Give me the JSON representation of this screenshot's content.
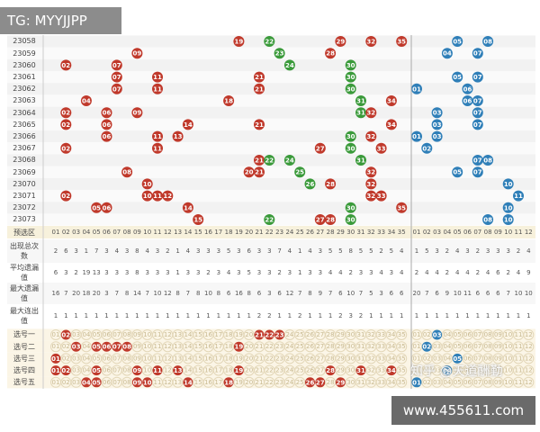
{
  "watermark_top": "TG: MYYJJPP",
  "watermark_bottom": "www.455611.com",
  "credit": "知乎 @天道酬勤",
  "trend": {
    "header_label": "预选区",
    "front_numbers": [
      "01",
      "02",
      "03",
      "04",
      "05",
      "06",
      "07",
      "08",
      "09",
      "10",
      "11",
      "12",
      "13",
      "14",
      "15",
      "16",
      "17",
      "18",
      "19",
      "20",
      "21",
      "22",
      "23",
      "24",
      "25",
      "26",
      "27",
      "28",
      "29",
      "30",
      "31",
      "32",
      "33",
      "34",
      "35"
    ],
    "back_numbers": [
      "01",
      "02",
      "03",
      "04",
      "05",
      "06",
      "07",
      "08",
      "09",
      "10",
      "11",
      "12"
    ],
    "front_green": [
      "22",
      "23",
      "24",
      "25",
      "26",
      "30",
      "31"
    ],
    "rows": [
      {
        "issue": "23058",
        "front": [
          "19",
          "22",
          "29",
          "32",
          "35"
        ],
        "back": [
          "05",
          "08"
        ]
      },
      {
        "issue": "23059",
        "front": [
          "09",
          "23",
          "28"
        ],
        "back": [
          "04",
          "07"
        ]
      },
      {
        "issue": "23060",
        "front": [
          "02",
          "07",
          "24",
          "30"
        ],
        "back": []
      },
      {
        "issue": "23061",
        "front": [
          "07",
          "11",
          "21",
          "30"
        ],
        "back": [
          "05",
          "07"
        ]
      },
      {
        "issue": "23062",
        "front": [
          "07",
          "11",
          "21",
          "30"
        ],
        "back": [
          "01",
          "06"
        ]
      },
      {
        "issue": "23063",
        "front": [
          "04",
          "18",
          "31",
          "34"
        ],
        "back": [
          "06",
          "07"
        ]
      },
      {
        "issue": "23064",
        "front": [
          "02",
          "06",
          "09",
          "31",
          "32"
        ],
        "back": [
          "03",
          "07"
        ]
      },
      {
        "issue": "23065",
        "front": [
          "02",
          "06",
          "14",
          "21",
          "34"
        ],
        "back": [
          "03",
          "07"
        ]
      },
      {
        "issue": "23066",
        "front": [
          "06",
          "11",
          "13",
          "30",
          "32"
        ],
        "back": [
          "01",
          "03"
        ]
      },
      {
        "issue": "23067",
        "front": [
          "02",
          "11",
          "27",
          "30",
          "33"
        ],
        "back": [
          "02"
        ]
      },
      {
        "issue": "23068",
        "front": [
          "21",
          "22",
          "24",
          "31"
        ],
        "back": [
          "07",
          "08"
        ]
      },
      {
        "issue": "23069",
        "front": [
          "08",
          "20",
          "21",
          "25",
          "32"
        ],
        "back": [
          "05",
          "07"
        ]
      },
      {
        "issue": "23070",
        "front": [
          "10",
          "26",
          "28",
          "32"
        ],
        "back": [
          "10"
        ]
      },
      {
        "issue": "23071",
        "front": [
          "02",
          "10",
          "11",
          "12",
          "32",
          "33"
        ],
        "back": [
          "11"
        ]
      },
      {
        "issue": "23072",
        "front": [
          "05",
          "06",
          "14",
          "30",
          "35"
        ],
        "back": [
          "10"
        ]
      },
      {
        "issue": "23073",
        "front": [
          "15",
          "22",
          "27",
          "28",
          "30"
        ],
        "back": [
          "08",
          "10"
        ]
      }
    ]
  },
  "stats": [
    {
      "label": "出现总次数",
      "values": [
        2,
        6,
        3,
        1,
        7,
        3,
        4,
        3,
        8,
        4,
        3,
        2,
        1,
        4,
        3,
        3,
        3,
        5,
        3,
        6,
        3,
        3,
        7,
        4,
        1,
        4,
        3,
        5,
        5,
        8,
        5,
        5,
        2,
        5,
        4,
        1,
        5,
        3,
        2,
        4,
        3,
        2,
        3,
        3,
        3,
        2,
        4
      ]
    },
    {
      "label": "平均遗漏值",
      "values": [
        6,
        3,
        2,
        19,
        13,
        3,
        3,
        3,
        8,
        3,
        3,
        3,
        1,
        3,
        3,
        2,
        3,
        4,
        3,
        5,
        3,
        3,
        2,
        3,
        1,
        3,
        3,
        4,
        4,
        2,
        3,
        3,
        4,
        3,
        4,
        2,
        4,
        4,
        2,
        4,
        4,
        2,
        4,
        6,
        2,
        4,
        9
      ]
    },
    {
      "label": "最大遗漏值",
      "values": [
        16,
        7,
        20,
        18,
        20,
        3,
        7,
        8,
        14,
        7,
        10,
        12,
        8,
        7,
        8,
        10,
        8,
        6,
        16,
        8,
        6,
        3,
        6,
        12,
        7,
        8,
        9,
        7,
        6,
        10,
        7,
        5,
        3,
        6,
        6,
        20,
        7,
        6,
        9,
        10,
        11,
        6,
        6,
        6,
        7,
        10,
        10
      ]
    },
    {
      "label": "最大连出值",
      "values": [
        1,
        1,
        1,
        1,
        1,
        1,
        1,
        1,
        1,
        1,
        1,
        1,
        1,
        1,
        1,
        1,
        1,
        1,
        1,
        1,
        2,
        2,
        1,
        1,
        2,
        1,
        1,
        1,
        2,
        3,
        2,
        1,
        1,
        1,
        1,
        1,
        1,
        1,
        1,
        1,
        1,
        1,
        1,
        1,
        1,
        1,
        1
      ]
    }
  ],
  "picks": [
    {
      "label": "选号一",
      "front": [
        "02",
        "21",
        "22",
        "23"
      ],
      "back": [
        "03"
      ]
    },
    {
      "label": "选号二",
      "front": [
        "03",
        "05",
        "06",
        "07",
        "08",
        "19"
      ],
      "back": [
        "02"
      ]
    },
    {
      "label": "选号三",
      "front": [
        "01"
      ],
      "back": [
        "05"
      ]
    },
    {
      "label": "选号四",
      "front": [
        "01",
        "02",
        "05",
        "09",
        "11",
        "13",
        "19",
        "28",
        "31",
        "34"
      ],
      "back": [
        "04"
      ]
    },
    {
      "label": "选号五",
      "front": [
        "04",
        "05",
        "09",
        "10",
        "14",
        "18",
        "26",
        "27",
        "29"
      ],
      "back": [
        "01"
      ]
    }
  ]
}
